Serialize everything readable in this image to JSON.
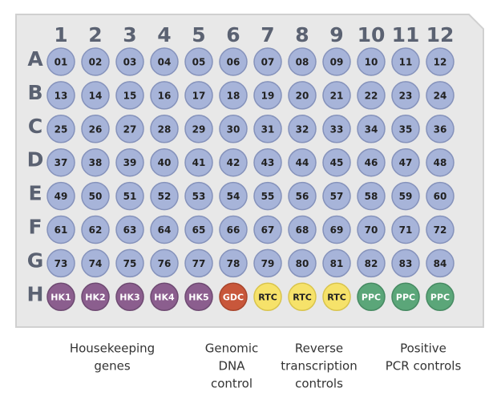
{
  "columns": [
    "1",
    "2",
    "3",
    "4",
    "5",
    "6",
    "7",
    "8",
    "9",
    "10",
    "11",
    "12"
  ],
  "rows": [
    {
      "label": "A",
      "wells": [
        "01",
        "02",
        "03",
        "04",
        "05",
        "06",
        "07",
        "08",
        "09",
        "10",
        "11",
        "12"
      ]
    },
    {
      "label": "B",
      "wells": [
        "13",
        "14",
        "15",
        "16",
        "17",
        "18",
        "19",
        "20",
        "21",
        "22",
        "23",
        "24"
      ]
    },
    {
      "label": "C",
      "wells": [
        "25",
        "26",
        "27",
        "28",
        "29",
        "30",
        "31",
        "32",
        "33",
        "34",
        "35",
        "36"
      ]
    },
    {
      "label": "D",
      "wells": [
        "37",
        "38",
        "39",
        "40",
        "41",
        "42",
        "43",
        "44",
        "45",
        "46",
        "47",
        "48"
      ]
    },
    {
      "label": "E",
      "wells": [
        "49",
        "50",
        "51",
        "52",
        "53",
        "54",
        "55",
        "56",
        "57",
        "58",
        "59",
        "60"
      ]
    },
    {
      "label": "F",
      "wells": [
        "61",
        "62",
        "63",
        "64",
        "65",
        "66",
        "67",
        "68",
        "69",
        "70",
        "71",
        "72"
      ]
    },
    {
      "label": "G",
      "wells": [
        "73",
        "74",
        "75",
        "76",
        "77",
        "78",
        "79",
        "80",
        "81",
        "82",
        "83",
        "84"
      ]
    },
    {
      "label": "H",
      "wells": [
        "HK1",
        "HK2",
        "HK3",
        "HK4",
        "HK5",
        "GDC",
        "RTC",
        "RTC",
        "RTC",
        "PPC",
        "PPC",
        "PPC"
      ]
    }
  ],
  "groups": [
    {
      "lines": [
        "Housekeeping",
        "genes"
      ]
    },
    {
      "lines": [
        "Genomic",
        "DNA",
        "control"
      ]
    },
    {
      "lines": [
        "Reverse",
        "transcription",
        "controls"
      ]
    },
    {
      "lines": [
        "Positive",
        "PCR controls"
      ]
    }
  ]
}
